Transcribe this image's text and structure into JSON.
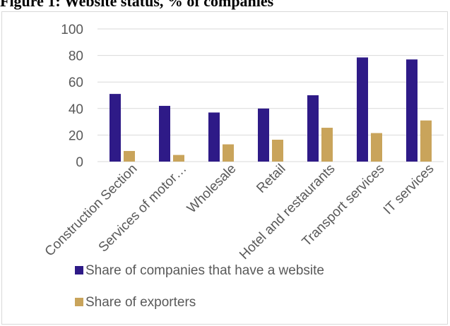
{
  "title": "Figure 1: Website status, % of companies",
  "chart_data": {
    "type": "bar",
    "categories": [
      "Construction Section",
      "Services of motor…",
      "Wholesale",
      "Retail",
      "Hotel and restaurants",
      "Transport  services",
      "IT services"
    ],
    "series": [
      {
        "name": "Share of  companies that have a website",
        "color": "#2e1a87",
        "values": [
          51,
          42,
          37,
          40,
          50,
          78.5,
          77
        ]
      },
      {
        "name": "Share of exporters",
        "color": "#c9a45b",
        "values": [
          8,
          5,
          13,
          16.5,
          25.5,
          21.5,
          31
        ]
      }
    ],
    "ylim": [
      0,
      100
    ],
    "yticks": [
      0,
      20,
      40,
      60,
      80,
      100
    ],
    "grid": true,
    "legend_position": "bottom-left"
  }
}
